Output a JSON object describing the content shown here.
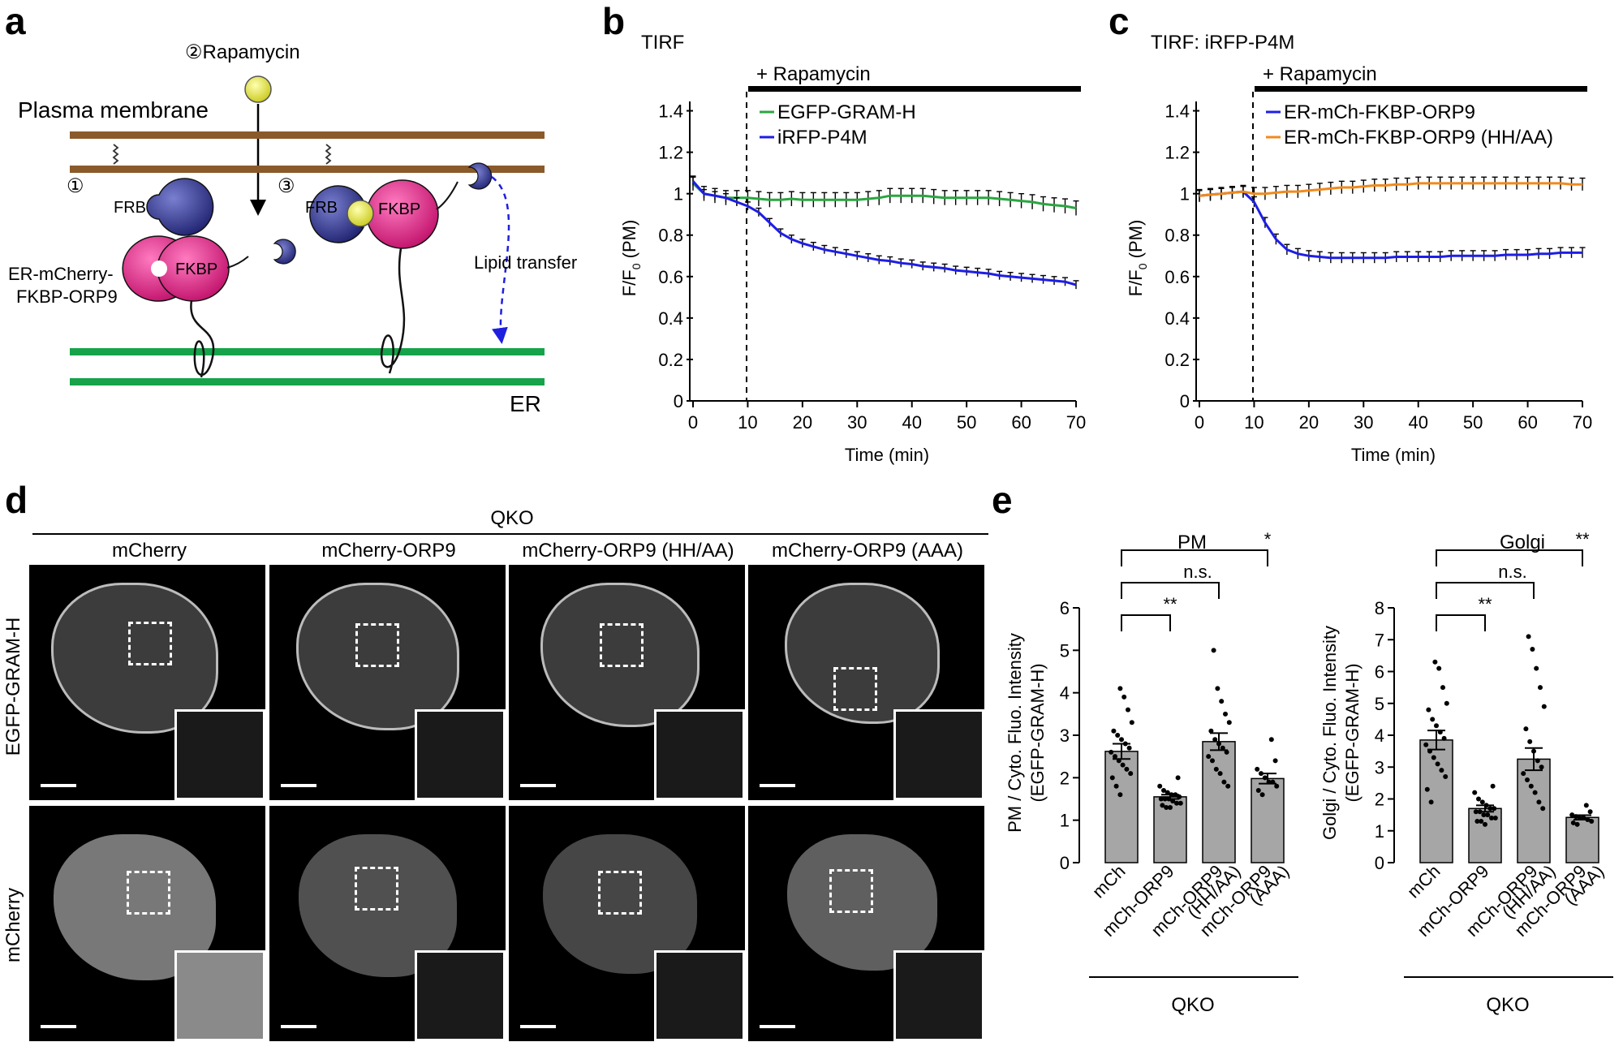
{
  "panel_labels": [
    "a",
    "b",
    "c",
    "d",
    "e"
  ],
  "panel_a": {
    "rapamycin_step": "②Rapamycin",
    "plasma_membrane": "Plasma membrane",
    "step1": "①",
    "step3": "③",
    "frb": "FRB",
    "fkbp": "FKBP",
    "construct_line1": "ER-mCherry-",
    "construct_line2": "FKBP-ORP9",
    "lipid_transfer": "Lipid transfer",
    "er": "ER",
    "colors": {
      "membrane": "#8b5a2b",
      "er": "#16a34a",
      "frb": "#2a2f86",
      "fkbp": "#e0207f",
      "rapamycin": "#e6ea3a",
      "construct_text": "#e020c0",
      "lipid_text": "#1f1fe0"
    }
  },
  "chart_data": [
    {
      "type": "line",
      "panel": "b",
      "title": "TIRF",
      "treatment": "+ Rapamycin",
      "treatment_start": 10,
      "xlabel": "Time (min)",
      "ylabel": "F/F0 (PM)",
      "ylabel_main": "F/F",
      "ylabel_sub": "0",
      "ylabel_tail": " (PM)",
      "xlim": [
        0,
        70
      ],
      "ylim": [
        0,
        1.5
      ],
      "xticks": [
        "0",
        "10",
        "20",
        "30",
        "40",
        "50",
        "60",
        "70"
      ],
      "yticks": [
        "0",
        "0.2",
        "0.4",
        "0.6",
        "0.8",
        "1",
        "1.2",
        "1.4"
      ],
      "legend": "top-left",
      "series": [
        {
          "name": "EGFP-GRAM-H",
          "color": "#2aa640",
          "x": [
            0,
            2,
            4,
            6,
            8,
            10,
            12,
            14,
            16,
            18,
            20,
            22,
            24,
            26,
            28,
            30,
            32,
            34,
            36,
            38,
            40,
            42,
            44,
            46,
            48,
            50,
            52,
            54,
            56,
            58,
            60,
            62,
            64,
            66,
            68,
            70
          ],
          "y": [
            1.05,
            1.0,
            0.99,
            0.98,
            0.98,
            0.98,
            0.975,
            0.97,
            0.97,
            0.975,
            0.97,
            0.97,
            0.97,
            0.97,
            0.97,
            0.97,
            0.975,
            0.98,
            0.99,
            0.99,
            0.99,
            0.99,
            0.985,
            0.98,
            0.98,
            0.98,
            0.98,
            0.98,
            0.975,
            0.97,
            0.965,
            0.96,
            0.95,
            0.945,
            0.94,
            0.93
          ],
          "err": 0.035
        },
        {
          "name": "iRFP-P4M",
          "color": "#1e1ee6",
          "x": [
            0,
            2,
            4,
            6,
            8,
            10,
            12,
            14,
            16,
            18,
            20,
            22,
            24,
            26,
            28,
            30,
            32,
            34,
            36,
            38,
            40,
            42,
            44,
            46,
            48,
            50,
            52,
            54,
            56,
            58,
            60,
            62,
            64,
            66,
            68,
            70
          ],
          "y": [
            1.06,
            1.0,
            0.99,
            0.98,
            0.96,
            0.94,
            0.91,
            0.86,
            0.81,
            0.78,
            0.76,
            0.745,
            0.73,
            0.72,
            0.71,
            0.7,
            0.69,
            0.68,
            0.675,
            0.665,
            0.66,
            0.65,
            0.645,
            0.64,
            0.63,
            0.625,
            0.62,
            0.615,
            0.605,
            0.6,
            0.595,
            0.59,
            0.585,
            0.58,
            0.575,
            0.56
          ],
          "err": 0.02
        }
      ]
    },
    {
      "type": "line",
      "panel": "c",
      "title": "TIRF: iRFP-P4M",
      "treatment": "+ Rapamycin",
      "treatment_start": 10,
      "xlabel": "Time (min)",
      "ylabel": "F/F0 (PM)",
      "ylabel_main": "F/F",
      "ylabel_sub": "0",
      "ylabel_tail": " (PM)",
      "xlim": [
        0,
        70
      ],
      "ylim": [
        0,
        1.5
      ],
      "xticks": [
        "0",
        "10",
        "20",
        "30",
        "40",
        "50",
        "60",
        "70"
      ],
      "yticks": [
        "0",
        "0.2",
        "0.4",
        "0.6",
        "0.8",
        "1",
        "1.2",
        "1.4"
      ],
      "legend": "top-left",
      "series": [
        {
          "name": "ER-mCh-FKBP-ORP9",
          "color": "#1e1ee6",
          "x": [
            0,
            2,
            4,
            6,
            8,
            10,
            12,
            14,
            16,
            18,
            20,
            22,
            24,
            26,
            28,
            30,
            32,
            34,
            36,
            38,
            40,
            42,
            44,
            46,
            48,
            50,
            52,
            54,
            56,
            58,
            60,
            62,
            64,
            66,
            68,
            70
          ],
          "y": [
            0.99,
            0.995,
            1.0,
            1.005,
            1.01,
            0.96,
            0.86,
            0.78,
            0.73,
            0.71,
            0.7,
            0.695,
            0.69,
            0.69,
            0.69,
            0.69,
            0.69,
            0.69,
            0.695,
            0.695,
            0.695,
            0.695,
            0.695,
            0.7,
            0.7,
            0.7,
            0.7,
            0.7,
            0.705,
            0.705,
            0.705,
            0.71,
            0.71,
            0.715,
            0.715,
            0.715
          ],
          "err": 0.025
        },
        {
          "name": "ER-mCh-FKBP-ORP9 (HH/AA)",
          "color": "#f08a1c",
          "x": [
            0,
            2,
            4,
            6,
            8,
            10,
            12,
            14,
            16,
            18,
            20,
            22,
            24,
            26,
            28,
            30,
            32,
            34,
            36,
            38,
            40,
            42,
            44,
            46,
            48,
            50,
            52,
            54,
            56,
            58,
            60,
            62,
            64,
            66,
            68,
            70
          ],
          "y": [
            0.99,
            0.995,
            1.0,
            1.005,
            1.01,
            1.0,
            1.0,
            1.005,
            1.01,
            1.01,
            1.015,
            1.02,
            1.025,
            1.03,
            1.03,
            1.035,
            1.04,
            1.04,
            1.045,
            1.045,
            1.05,
            1.05,
            1.05,
            1.05,
            1.05,
            1.05,
            1.05,
            1.05,
            1.05,
            1.05,
            1.05,
            1.05,
            1.05,
            1.05,
            1.045,
            1.045
          ],
          "err": 0.03
        }
      ]
    },
    {
      "type": "bar",
      "panel": "e",
      "title": "PM",
      "ylabel_line1": "PM / Cyto. Fluo. Intensity",
      "ylabel_line2": "(EGFP-GRAM-H)",
      "ylim": [
        0,
        6
      ],
      "yticks": [
        "0",
        "1",
        "2",
        "3",
        "4",
        "5",
        "6"
      ],
      "categories": [
        "mCh",
        "mCh-ORP9",
        "mCh-ORP9\n(HH/AA)",
        "mCh-ORP9\n(AAA)"
      ],
      "category_line1": [
        "mCh",
        "mCh-ORP9",
        "mCh-ORP9",
        "mCh-ORP9"
      ],
      "category_line2": [
        "",
        "",
        "(HH/AA)",
        "(AAA)"
      ],
      "group_label": "QKO",
      "values": [
        2.62,
        1.55,
        2.85,
        1.98
      ],
      "errors": [
        0.18,
        0.05,
        0.2,
        0.12
      ],
      "points": [
        [
          4.1,
          3.9,
          3.6,
          3.3,
          3.1,
          3.0,
          2.9,
          2.8,
          2.7,
          2.6,
          2.5,
          2.4,
          2.3,
          2.2,
          2.1,
          2.0,
          1.8,
          1.6
        ],
        [
          2.0,
          1.8,
          1.7,
          1.65,
          1.6,
          1.6,
          1.55,
          1.5,
          1.5,
          1.5,
          1.45,
          1.4,
          1.4,
          1.35,
          1.3,
          1.3
        ],
        [
          5.0,
          4.1,
          3.8,
          3.5,
          3.3,
          3.1,
          2.9,
          2.8,
          2.7,
          2.6,
          2.5,
          2.4,
          2.2,
          2.1,
          1.9,
          1.8
        ],
        [
          2.9,
          2.4,
          2.2,
          2.1,
          2.0,
          1.9,
          1.9,
          1.8,
          1.7,
          1.6
        ]
      ],
      "significance": [
        {
          "from": 0,
          "to": 1,
          "label": "**"
        },
        {
          "from": 0,
          "to": 2,
          "label": "n.s."
        },
        {
          "from": 0,
          "to": 3,
          "label": "*"
        }
      ]
    },
    {
      "type": "bar",
      "panel": "e",
      "title": "Golgi",
      "ylabel_line1": "Golgi / Cyto. Fluo. Intensity",
      "ylabel_line2": "(EGFP-GRAM-H)",
      "ylim": [
        0,
        8
      ],
      "yticks": [
        "0",
        "1",
        "2",
        "3",
        "4",
        "5",
        "6",
        "7",
        "8"
      ],
      "categories": [
        "mCh",
        "mCh-ORP9",
        "mCh-ORP9\n(HH/AA)",
        "mCh-ORP9\n(AAA)"
      ],
      "category_line1": [
        "mCh",
        "mCh-ORP9",
        "mCh-ORP9",
        "mCh-ORP9"
      ],
      "category_line2": [
        "",
        "",
        "(HH/AA)",
        "(AAA)"
      ],
      "group_label": "QKO",
      "values": [
        3.85,
        1.7,
        3.25,
        1.42
      ],
      "errors": [
        0.3,
        0.1,
        0.35,
        0.07
      ],
      "points": [
        [
          6.3,
          6.1,
          5.5,
          5.0,
          4.8,
          4.5,
          4.3,
          4.1,
          3.9,
          3.7,
          3.5,
          3.3,
          3.1,
          2.9,
          2.7,
          2.3,
          1.9
        ],
        [
          2.4,
          2.2,
          2.0,
          1.9,
          1.8,
          1.7,
          1.7,
          1.6,
          1.6,
          1.5,
          1.5,
          1.4,
          1.4,
          1.3,
          1.3,
          1.2
        ],
        [
          7.1,
          6.7,
          6.1,
          5.5,
          4.9,
          4.2,
          3.8,
          3.5,
          3.2,
          3.0,
          2.8,
          2.6,
          2.4,
          2.2,
          1.9,
          1.7
        ],
        [
          1.8,
          1.6,
          1.5,
          1.45,
          1.4,
          1.4,
          1.35,
          1.3,
          1.25,
          1.2
        ]
      ],
      "significance": [
        {
          "from": 0,
          "to": 1,
          "label": "**"
        },
        {
          "from": 0,
          "to": 2,
          "label": "n.s."
        },
        {
          "from": 0,
          "to": 3,
          "label": "**"
        }
      ]
    }
  ],
  "panel_d": {
    "group_label": "QKO",
    "columns": [
      "mCherry",
      "mCherry-ORP9",
      "mCherry-ORP9 (HH/AA)",
      "mCherry-ORP9 (AAA)"
    ],
    "rows": [
      {
        "label": "EGFP-GRAM-H",
        "color": "#2aa640"
      },
      {
        "label": "mCherry",
        "color": "#e020c0"
      }
    ]
  }
}
